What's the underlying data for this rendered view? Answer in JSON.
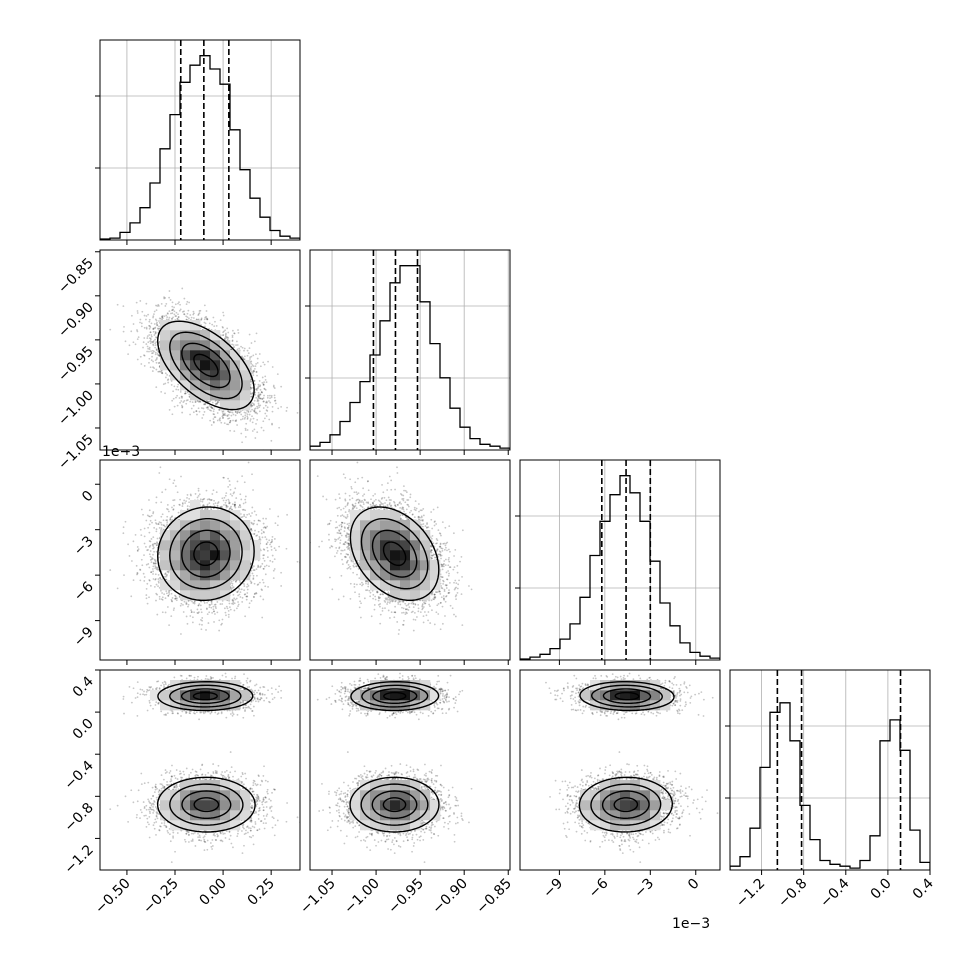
{
  "chart_data": {
    "type": "corner",
    "title": "",
    "parameters": [
      {
        "name": "",
        "range": [
          -0.64,
          0.4
        ],
        "ticks": [
          -0.5,
          -0.25,
          0.0,
          0.25
        ],
        "tick_labels": [
          "−0.50",
          "−0.25",
          "0.00",
          "0.25"
        ],
        "offset_text": "",
        "quantiles": [
          -0.22,
          -0.1,
          0.03
        ],
        "mean": -0.09,
        "sd": 0.125,
        "hist": [
          0.005,
          0.01,
          0.04,
          0.09,
          0.17,
          0.3,
          0.48,
          0.66,
          0.83,
          0.92,
          0.97,
          0.9,
          0.82,
          0.58,
          0.37,
          0.22,
          0.12,
          0.05,
          0.02,
          0.01
        ]
      },
      {
        "name": "",
        "range": [
          -1.075,
          -0.848
        ],
        "ticks": [
          -1.05,
          -1.0,
          -0.95,
          -0.9,
          -0.85
        ],
        "tick_labels": [
          "−1.05",
          "−1.00",
          "−0.95",
          "−0.90",
          "−0.85"
        ],
        "offset_text": "",
        "quantiles": [
          -1.003,
          -0.978,
          -0.953
        ],
        "mean": -0.978,
        "sd": 0.025,
        "hist": [
          0.02,
          0.04,
          0.08,
          0.15,
          0.25,
          0.36,
          0.5,
          0.68,
          0.88,
          0.97,
          0.97,
          0.78,
          0.56,
          0.38,
          0.22,
          0.12,
          0.06,
          0.03,
          0.02,
          0.01
        ]
      },
      {
        "name": "",
        "range": [
          -11.6,
          1.6
        ],
        "ticks": [
          -9,
          -6,
          -3,
          0
        ],
        "tick_labels": [
          "−9",
          "−6",
          "−3",
          "0"
        ],
        "offset_text": "1e−3",
        "quantiles": [
          -6.2,
          -4.6,
          -3.0
        ],
        "mean": -4.6,
        "sd": 1.55,
        "hist": [
          0.005,
          0.015,
          0.03,
          0.06,
          0.11,
          0.19,
          0.33,
          0.55,
          0.73,
          0.87,
          0.97,
          0.88,
          0.73,
          0.52,
          0.3,
          0.18,
          0.09,
          0.04,
          0.02,
          0.01
        ]
      },
      {
        "name": "",
        "range": [
          -1.5,
          0.4
        ],
        "ticks": [
          -1.2,
          -0.8,
          -0.4,
          0.0,
          0.4
        ],
        "tick_labels": [
          "−1.2",
          "−0.8",
          "−0.4",
          "0.0",
          "0.4"
        ],
        "offset_text": "",
        "quantiles": [
          -1.05,
          -0.82,
          0.12
        ],
        "hist": [
          0.02,
          0.07,
          0.22,
          0.54,
          0.83,
          0.88,
          0.68,
          0.34,
          0.16,
          0.05,
          0.03,
          0.02,
          0.01,
          0.05,
          0.18,
          0.68,
          0.79,
          0.63,
          0.21,
          0.04
        ]
      }
    ],
    "off_diagonal_notes": "2D histograms with 0.5/1/1.5/2-sigma contours and scatter points; parameter 4 is bimodal (modes near 0.15 and -0.88)",
    "modes_param4": [
      {
        "center": 0.15,
        "sd": 0.07,
        "weight": 0.42
      },
      {
        "center": -0.88,
        "sd": 0.13,
        "weight": 0.58
      }
    ],
    "correlations": {
      "p1_p2": -0.55,
      "p1_p3": 0.05,
      "p2_p3": -0.35
    },
    "grid": true,
    "quantile_style": "dashed"
  }
}
